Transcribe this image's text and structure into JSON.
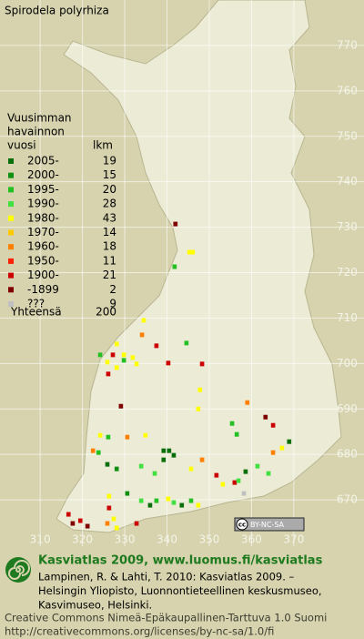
{
  "map": {
    "title": "Spirodela polyrhiza",
    "xlim": [
      300.5,
      386.6
    ],
    "ylim": [
      659.8,
      780
    ],
    "xticks": [
      310,
      320,
      330,
      340,
      350,
      360,
      370
    ],
    "yticks": [
      670,
      680,
      690,
      700,
      710,
      720,
      730,
      740,
      750,
      760,
      770
    ],
    "legend": {
      "heading": [
        "Vuusimman",
        "havainnon",
        "vuosi"
      ],
      "count_heading": "lkm",
      "rows": [
        {
          "label": "2005-",
          "count": 19,
          "color": "#0a6e0a"
        },
        {
          "label": "2000-",
          "count": 15,
          "color": "#109010"
        },
        {
          "label": "1995-",
          "count": 20,
          "color": "#22c022"
        },
        {
          "label": "1990-",
          "count": 28,
          "color": "#40e040"
        },
        {
          "label": "1980-",
          "count": 43,
          "color": "#ffff00"
        },
        {
          "label": "1970-",
          "count": 14,
          "color": "#ffc800"
        },
        {
          "label": "1960-",
          "count": 18,
          "color": "#ff8000"
        },
        {
          "label": "1950-",
          "count": 11,
          "color": "#ff2000"
        },
        {
          "label": "1900-",
          "count": 21,
          "color": "#cc0000"
        },
        {
          "label": "-1899",
          "count": 2,
          "color": "#800000"
        },
        {
          "label": "???",
          "count": 9,
          "color": "#c0c0c0"
        }
      ],
      "total_label": "Yhteensä",
      "total": 200
    },
    "points": [
      [
        342.0,
        730.7,
        9
      ],
      [
        345.3,
        724.5,
        4
      ],
      [
        346.1,
        724.5,
        4
      ],
      [
        341.8,
        721.3,
        2
      ],
      [
        334.5,
        709.5,
        4
      ],
      [
        334.1,
        706.3,
        6
      ],
      [
        337.5,
        703.9,
        8
      ],
      [
        328.1,
        704.3,
        4
      ],
      [
        327.2,
        701.9,
        8
      ],
      [
        329.8,
        701.9,
        4
      ],
      [
        324.2,
        701.9,
        2
      ],
      [
        331.9,
        701.3,
        4
      ],
      [
        326.1,
        697.7,
        8
      ],
      [
        329.8,
        700.7,
        2
      ],
      [
        332.8,
        699.9,
        4
      ],
      [
        328.1,
        699.1,
        4
      ],
      [
        325.9,
        700.3,
        4
      ],
      [
        344.6,
        704.5,
        2
      ],
      [
        340.3,
        700.1,
        8
      ],
      [
        348.3,
        699.9,
        8
      ],
      [
        329.1,
        690.6,
        9
      ],
      [
        347.8,
        694.2,
        4
      ],
      [
        359.0,
        691.4,
        6
      ],
      [
        363.3,
        688.2,
        9
      ],
      [
        365.1,
        686.4,
        8
      ],
      [
        347.4,
        690.0,
        4
      ],
      [
        356.5,
        684.4,
        2
      ],
      [
        355.4,
        686.8,
        2
      ],
      [
        368.9,
        682.8,
        0
      ],
      [
        367.2,
        681.4,
        4
      ],
      [
        365.1,
        680.4,
        6
      ],
      [
        324.2,
        684.2,
        4
      ],
      [
        326.1,
        683.8,
        2
      ],
      [
        330.6,
        683.8,
        6
      ],
      [
        334.9,
        684.2,
        4
      ],
      [
        339.2,
        680.8,
        0
      ],
      [
        340.5,
        680.8,
        0
      ],
      [
        341.6,
        679.8,
        0
      ],
      [
        339.2,
        678.8,
        0
      ],
      [
        322.5,
        680.8,
        6
      ],
      [
        323.8,
        680.4,
        2
      ],
      [
        325.9,
        677.8,
        0
      ],
      [
        328.1,
        676.8,
        1
      ],
      [
        333.9,
        677.4,
        3
      ],
      [
        337.1,
        675.8,
        3
      ],
      [
        345.7,
        676.8,
        4
      ],
      [
        348.3,
        678.8,
        6
      ],
      [
        351.7,
        675.4,
        8
      ],
      [
        353.2,
        673.4,
        4
      ],
      [
        356.0,
        673.8,
        8
      ],
      [
        358.2,
        671.4,
        10
      ],
      [
        356.9,
        674.2,
        3
      ],
      [
        326.3,
        670.8,
        4
      ],
      [
        326.3,
        668.2,
        8
      ],
      [
        327.4,
        665.8,
        4
      ],
      [
        333.9,
        669.8,
        3
      ],
      [
        336.0,
        668.8,
        0
      ],
      [
        337.5,
        669.8,
        2
      ],
      [
        340.3,
        670.2,
        4
      ],
      [
        341.6,
        669.4,
        3
      ],
      [
        343.5,
        668.8,
        0
      ],
      [
        345.7,
        669.8,
        2
      ],
      [
        347.4,
        668.8,
        4
      ],
      [
        316.7,
        666.8,
        8
      ],
      [
        317.7,
        664.8,
        9
      ],
      [
        319.5,
        665.4,
        8
      ],
      [
        321.2,
        664.2,
        9
      ],
      [
        328.1,
        663.8,
        4
      ],
      [
        332.8,
        664.8,
        8
      ],
      [
        325.9,
        664.8,
        6
      ],
      [
        361.4,
        677.4,
        3
      ],
      [
        364.0,
        675.8,
        3
      ],
      [
        358.6,
        676.2,
        0
      ],
      [
        330.6,
        671.4,
        1
      ]
    ],
    "cc_symbol": "cc",
    "cc_badge": "BY-NC-SA",
    "footer": {
      "heading": "Kasviatlas 2009, www.luomus.fi/kasviatlas",
      "citation": [
        "Lampinen, R. & Lahti, T. 2010: Kasviatlas 2009. –",
        "Helsingin Yliopisto, Luonnontieteellinen keskusmuseo,",
        "Kasvimuseo, Helsinki."
      ],
      "license": [
        "Creative Commons Nimeä-Epäkaupallinen-Tarttuva 1.0 Suomi",
        "http://creativecommons.org/licenses/by-nc-sa/1.0/fi"
      ]
    }
  }
}
